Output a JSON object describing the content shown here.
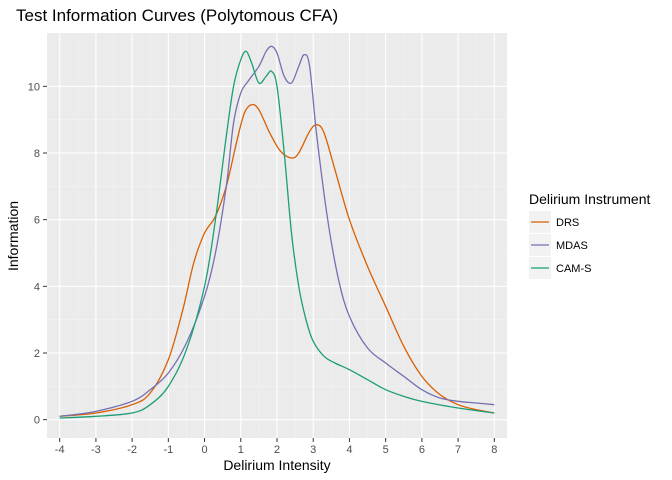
{
  "chart_data": {
    "type": "line",
    "title": "Test Information Curves (Polytomous CFA)",
    "xlabel": "Delirium Intensity",
    "ylabel": "Information",
    "xlim": [
      -4.35,
      8.35
    ],
    "ylim": [
      -0.55,
      11.6
    ],
    "xticks": [
      -4,
      -3,
      -2,
      -1,
      0,
      1,
      2,
      3,
      4,
      5,
      6,
      7,
      8
    ],
    "xtick_labels": [
      "-4",
      "-3",
      "-2",
      "-1",
      "0",
      "1",
      "2",
      "3",
      "4",
      "5",
      "6",
      "7",
      "8"
    ],
    "yticks": [
      0,
      2,
      4,
      6,
      8,
      10
    ],
    "ytick_labels": [
      "0",
      "2",
      "4",
      "6",
      "8",
      "10"
    ],
    "grid": true,
    "legend": {
      "title": "Delirium Instrument",
      "position": "right"
    },
    "series": [
      {
        "name": "DRS",
        "color": "#d95f02",
        "x": [
          -4,
          -3,
          -2,
          -1.5,
          -1,
          -0.6,
          -0.3,
          0,
          0.3,
          0.6,
          0.9,
          1.1,
          1.3,
          1.5,
          1.8,
          2.1,
          2.4,
          2.6,
          2.9,
          3.1,
          3.3,
          3.6,
          4,
          4.5,
          5,
          5.5,
          6,
          6.5,
          7,
          7.5,
          8
        ],
        "y": [
          0.1,
          0.2,
          0.45,
          0.8,
          1.8,
          3.3,
          4.7,
          5.6,
          6.1,
          7.0,
          8.4,
          9.2,
          9.45,
          9.3,
          8.6,
          8.05,
          7.85,
          8.0,
          8.65,
          8.85,
          8.6,
          7.5,
          6.0,
          4.6,
          3.4,
          2.2,
          1.3,
          0.75,
          0.45,
          0.3,
          0.2
        ]
      },
      {
        "name": "MDAS",
        "color": "#7570b3",
        "x": [
          -4,
          -3,
          -2,
          -1.5,
          -1,
          -0.5,
          0,
          0.3,
          0.6,
          0.8,
          1,
          1.2,
          1.5,
          1.7,
          1.85,
          2,
          2.2,
          2.4,
          2.6,
          2.75,
          2.9,
          3.1,
          3.4,
          3.7,
          4,
          4.5,
          5,
          5.5,
          6,
          6.5,
          7,
          7.5,
          8
        ],
        "y": [
          0.1,
          0.25,
          0.55,
          0.9,
          1.4,
          2.3,
          3.7,
          5.0,
          7.0,
          8.9,
          9.8,
          10.15,
          10.6,
          11.05,
          11.2,
          11.0,
          10.3,
          10.1,
          10.6,
          10.95,
          10.6,
          8.5,
          6.0,
          4.2,
          3.1,
          2.15,
          1.7,
          1.3,
          0.9,
          0.65,
          0.55,
          0.5,
          0.45
        ]
      },
      {
        "name": "CAM-S",
        "color": "#1b9e77",
        "x": [
          -4,
          -3,
          -2,
          -1.5,
          -1,
          -0.5,
          0,
          0.3,
          0.6,
          0.8,
          1,
          1.15,
          1.3,
          1.5,
          1.7,
          1.85,
          2,
          2.2,
          2.4,
          2.6,
          2.8,
          3,
          3.3,
          3.6,
          4,
          4.5,
          5,
          5.5,
          6,
          7,
          8
        ],
        "y": [
          0.05,
          0.1,
          0.2,
          0.45,
          1.0,
          2.1,
          4.0,
          6.0,
          8.5,
          10.0,
          10.8,
          11.05,
          10.7,
          10.1,
          10.3,
          10.45,
          10.0,
          8.0,
          5.6,
          4.0,
          3.0,
          2.35,
          1.9,
          1.7,
          1.5,
          1.2,
          0.9,
          0.7,
          0.55,
          0.35,
          0.2
        ]
      }
    ]
  }
}
